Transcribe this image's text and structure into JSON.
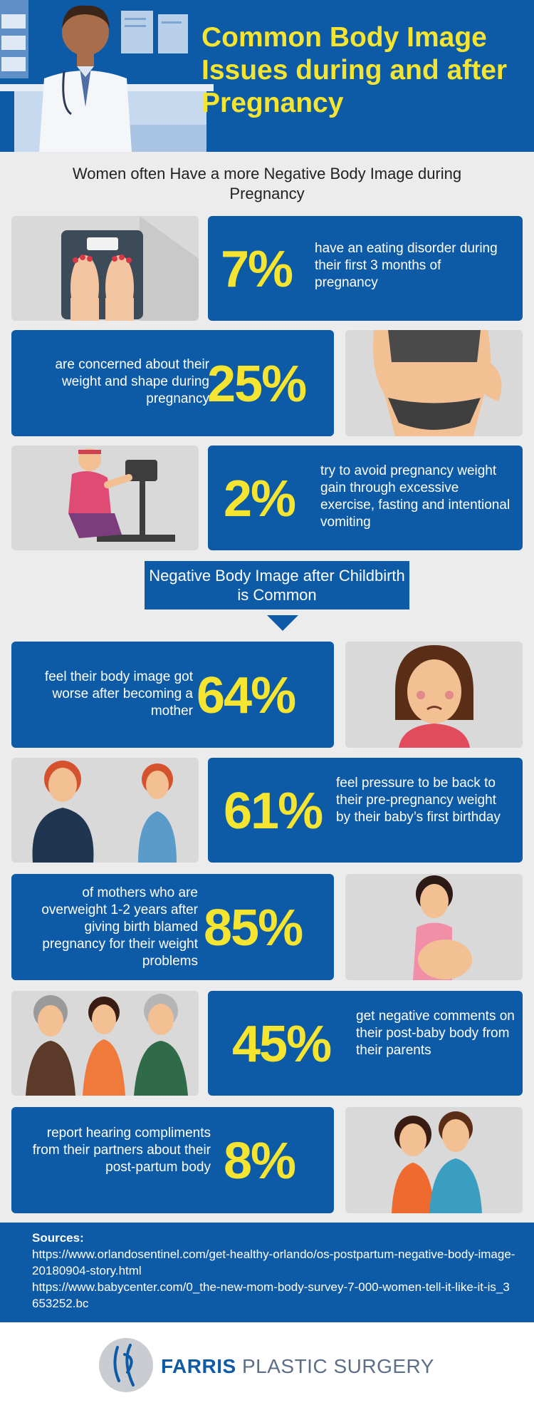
{
  "header": {
    "title": "Common Body Image Issues during and after Pregnancy"
  },
  "section1": {
    "subtitle": "Women often Have a more Negative Body Image during Pregnancy"
  },
  "section2": {
    "banner": "Negative Body Image after Childbirth is Common"
  },
  "stats": [
    {
      "percent": "7%",
      "text": "have an eating disorder during their first 3 months of pregnancy",
      "illustration": "scale-feet-icon"
    },
    {
      "percent": "25%",
      "text": "are concerned about their weight and shape during pregnancy",
      "illustration": "body-torso-icon"
    },
    {
      "percent": "2%",
      "text": "try to avoid pregnancy weight gain through excessive exercise, fasting and intentional vomiting",
      "illustration": "exercise-bike-icon"
    },
    {
      "percent": "64%",
      "text": "feel their body image got worse after becoming a mother",
      "illustration": "sad-woman-icon"
    },
    {
      "percent": "61%",
      "text": "feel pressure to be back to their pre-pregnancy weight by their baby’s first birthday",
      "illustration": "two-women-icon"
    },
    {
      "percent": "85%",
      "text": "of mothers who are overweight 1-2 years after giving birth blamed pregnancy for their weight problems",
      "illustration": "pregnant-woman-icon"
    },
    {
      "percent": "45%",
      "text": "get negative comments on their post-baby body from their parents",
      "illustration": "parents-icon"
    },
    {
      "percent": "8%",
      "text": "report hearing compliments from their partners about their post-partum body",
      "illustration": "couple-icon"
    }
  ],
  "sources": {
    "label": "Sources:",
    "links": [
      "https://www.orlandosentinel.com/get-healthy-orlando/os-postpartum-negative-body-image-20180904-story.html",
      "https://www.babycenter.com/0_the-new-mom-body-survey-7-000-women-tell-it-like-it-is_3653252.bc"
    ]
  },
  "footer": {
    "brand_bold": "FARRIS",
    "brand_rest": " PLASTIC SURGERY"
  },
  "colors": {
    "brand_blue": "#0d5aa7",
    "accent_yellow": "#f5e530",
    "panel_gray": "#ececec"
  }
}
